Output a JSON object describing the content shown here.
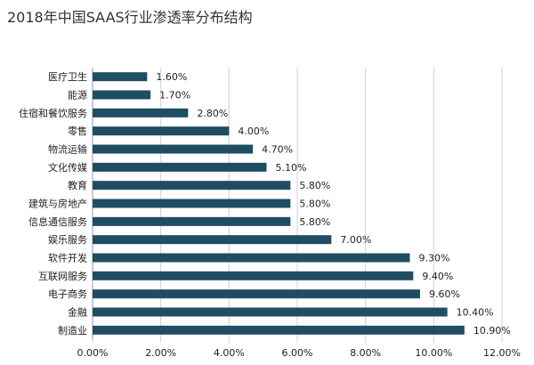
{
  "chart_data": {
    "type": "bar",
    "orientation": "horizontal",
    "title": "2018年中国SAAS行业渗透率分布结构",
    "categories": [
      "医疗卫生",
      "能源",
      "住宿和餐饮服务",
      "零售",
      "物流运输",
      "文化传媒",
      "教育",
      "建筑与房地产",
      "信息通信服务",
      "娱乐服务",
      "软件开发",
      "互联网服务",
      "电子商务",
      "金融",
      "制造业"
    ],
    "values": [
      1.6,
      1.7,
      2.8,
      4.0,
      4.7,
      5.1,
      5.8,
      5.8,
      5.8,
      7.0,
      9.3,
      9.4,
      9.6,
      10.4,
      10.9
    ],
    "value_labels": [
      "1.60%",
      "1.70%",
      "2.80%",
      "4.00%",
      "4.70%",
      "5.10%",
      "5.80%",
      "5.80%",
      "5.80%",
      "7.00%",
      "9.30%",
      "9.40%",
      "9.60%",
      "10.40%",
      "10.90%"
    ],
    "xlim": [
      0,
      12
    ],
    "xticks": [
      0,
      2,
      4,
      6,
      8,
      10,
      12
    ],
    "xtick_labels": [
      "0.00%",
      "2.00%",
      "4.00%",
      "6.00%",
      "8.00%",
      "10.00%",
      "12.00%"
    ],
    "bar_color": "#1f4e63",
    "grid": true,
    "grid_color": "#d0d0d0",
    "legend": false
  }
}
